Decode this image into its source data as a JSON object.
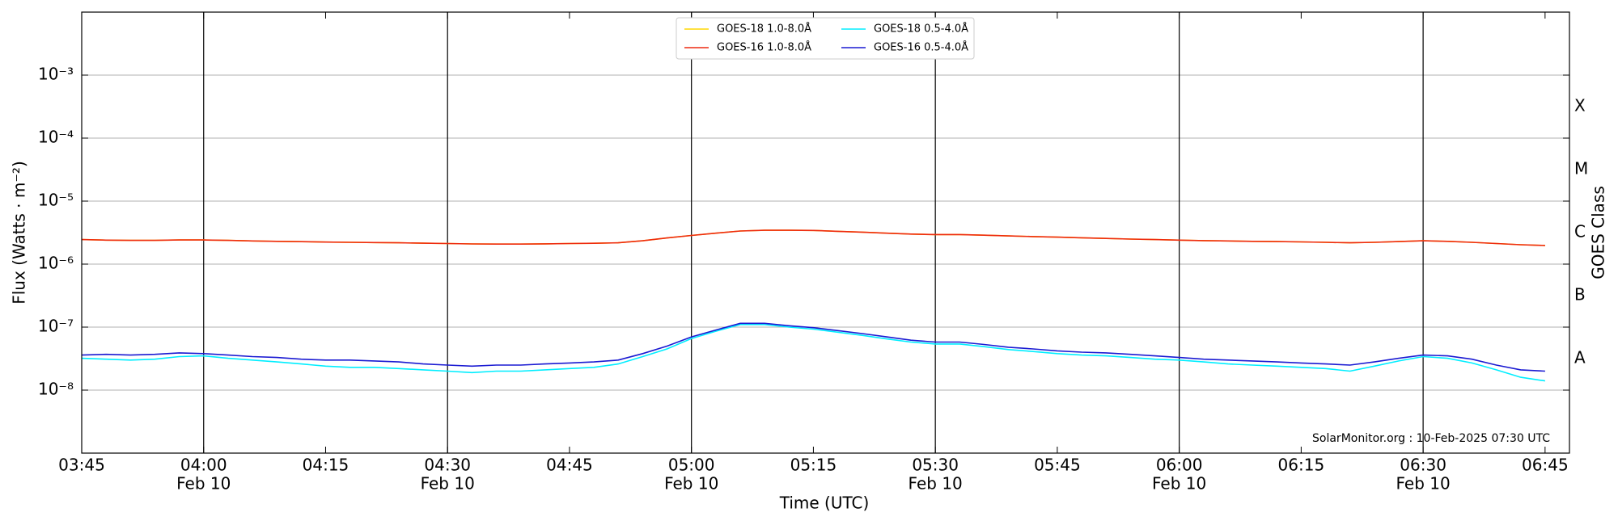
{
  "chart_data": {
    "type": "line",
    "x_label": "Time (UTC)",
    "y_label": "Flux (Watts · m⁻²)",
    "y2_label": "GOES Class",
    "class_labels": [
      "A",
      "B",
      "C",
      "M",
      "X"
    ],
    "annotation": "SolarMonitor.org : 10-Feb-2025 07:30 UTC",
    "yscale": "log",
    "grid": true,
    "legend": "top-center",
    "xlim": [
      "03:45",
      "06:48"
    ],
    "ylim": [
      1e-09,
      0.01
    ],
    "yticks": [
      {
        "value": 1e-08,
        "label": "10⁻⁸"
      },
      {
        "value": 1e-07,
        "label": "10⁻⁷"
      },
      {
        "value": 1e-06,
        "label": "10⁻⁶"
      },
      {
        "value": 1e-05,
        "label": "10⁻⁵"
      },
      {
        "value": 0.0001,
        "label": "10⁻⁴"
      },
      {
        "value": 0.001,
        "label": "10⁻³"
      }
    ],
    "xticks": [
      "03:45",
      {
        "value": "04:00",
        "label": [
          "04:00",
          "Feb 10"
        ]
      },
      "04:15",
      {
        "value": "04:30",
        "label": [
          "04:30",
          "Feb 10"
        ]
      },
      "04:45",
      {
        "value": "05:00",
        "label": [
          "05:00",
          "Feb 10"
        ]
      },
      "05:15",
      {
        "value": "05:30",
        "label": [
          "05:30",
          "Feb 10"
        ]
      },
      "05:45",
      {
        "value": "06:00",
        "label": [
          "06:00",
          "Feb 10"
        ]
      },
      "06:15",
      {
        "value": "06:30",
        "label": [
          "06:30",
          "Feb 10"
        ]
      },
      "06:45"
    ],
    "x": [
      "03:45",
      "03:48",
      "03:51",
      "03:54",
      "03:57",
      "04:00",
      "04:03",
      "04:06",
      "04:09",
      "04:12",
      "04:15",
      "04:18",
      "04:21",
      "04:24",
      "04:27",
      "04:30",
      "04:33",
      "04:36",
      "04:39",
      "04:42",
      "04:45",
      "04:48",
      "04:51",
      "04:54",
      "04:57",
      "05:00",
      "05:03",
      "05:06",
      "05:09",
      "05:12",
      "05:15",
      "05:18",
      "05:21",
      "05:24",
      "05:27",
      "05:30",
      "05:33",
      "05:36",
      "05:39",
      "05:42",
      "05:45",
      "05:48",
      "05:51",
      "05:54",
      "05:57",
      "06:00",
      "06:03",
      "06:06",
      "06:09",
      "06:12",
      "06:15",
      "06:18",
      "06:21",
      "06:24",
      "06:27",
      "06:30",
      "06:33",
      "06:36",
      "06:39",
      "06:42",
      "06:45"
    ],
    "series": [
      {
        "name": "GOES-18 1.0-8.0Å",
        "color": "#ffd700",
        "values": [
          2.45e-06,
          2.4e-06,
          2.38e-06,
          2.38e-06,
          2.42e-06,
          2.42e-06,
          2.38e-06,
          2.33e-06,
          2.3e-06,
          2.27e-06,
          2.24e-06,
          2.22e-06,
          2.2e-06,
          2.18e-06,
          2.15e-06,
          2.12e-06,
          2.09e-06,
          2.08e-06,
          2.08e-06,
          2.1e-06,
          2.12e-06,
          2.14e-06,
          2.18e-06,
          2.35e-06,
          2.6e-06,
          2.85e-06,
          3.1e-06,
          3.35e-06,
          3.45e-06,
          3.45e-06,
          3.42e-06,
          3.32e-06,
          3.22e-06,
          3.1e-06,
          3e-06,
          2.95e-06,
          2.95e-06,
          2.88e-06,
          2.8e-06,
          2.74e-06,
          2.68e-06,
          2.62e-06,
          2.56e-06,
          2.5e-06,
          2.45e-06,
          2.4e-06,
          2.36e-06,
          2.33e-06,
          2.3e-06,
          2.28e-06,
          2.25e-06,
          2.22e-06,
          2.18e-06,
          2.22e-06,
          2.28e-06,
          2.35e-06,
          2.3e-06,
          2.22e-06,
          2.12e-06,
          2.03e-06,
          1.98e-06
        ]
      },
      {
        "name": "GOES-16 1.0-8.0Å",
        "color": "#ee2a10",
        "values": [
          2.45e-06,
          2.4e-06,
          2.38e-06,
          2.38e-06,
          2.42e-06,
          2.42e-06,
          2.38e-06,
          2.33e-06,
          2.3e-06,
          2.27e-06,
          2.24e-06,
          2.22e-06,
          2.2e-06,
          2.18e-06,
          2.15e-06,
          2.12e-06,
          2.09e-06,
          2.08e-06,
          2.08e-06,
          2.1e-06,
          2.12e-06,
          2.14e-06,
          2.18e-06,
          2.35e-06,
          2.6e-06,
          2.85e-06,
          3.1e-06,
          3.35e-06,
          3.45e-06,
          3.45e-06,
          3.42e-06,
          3.32e-06,
          3.22e-06,
          3.1e-06,
          3e-06,
          2.95e-06,
          2.95e-06,
          2.88e-06,
          2.8e-06,
          2.74e-06,
          2.68e-06,
          2.62e-06,
          2.56e-06,
          2.5e-06,
          2.45e-06,
          2.4e-06,
          2.36e-06,
          2.33e-06,
          2.3e-06,
          2.28e-06,
          2.25e-06,
          2.22e-06,
          2.18e-06,
          2.22e-06,
          2.28e-06,
          2.35e-06,
          2.3e-06,
          2.22e-06,
          2.12e-06,
          2.03e-06,
          1.98e-06
        ]
      },
      {
        "name": "GOES-18 0.5-4.0Å",
        "color": "#00eeff",
        "values": [
          3.2e-08,
          3.1e-08,
          3e-08,
          3.1e-08,
          3.4e-08,
          3.5e-08,
          3.2e-08,
          3e-08,
          2.8e-08,
          2.6e-08,
          2.4e-08,
          2.3e-08,
          2.3e-08,
          2.2e-08,
          2.1e-08,
          2e-08,
          1.9e-08,
          2e-08,
          2e-08,
          2.1e-08,
          2.2e-08,
          2.3e-08,
          2.6e-08,
          3.4e-08,
          4.5e-08,
          6.6e-08,
          8.6e-08,
          1.1e-07,
          1.1e-07,
          1e-07,
          9.3e-08,
          8.3e-08,
          7.4e-08,
          6.5e-08,
          5.8e-08,
          5.4e-08,
          5.4e-08,
          4.9e-08,
          4.4e-08,
          4.1e-08,
          3.8e-08,
          3.6e-08,
          3.5e-08,
          3.3e-08,
          3.1e-08,
          3e-08,
          2.8e-08,
          2.6e-08,
          2.5e-08,
          2.4e-08,
          2.3e-08,
          2.2e-08,
          2e-08,
          2.4e-08,
          2.9e-08,
          3.4e-08,
          3.2e-08,
          2.7e-08,
          2.1e-08,
          1.6e-08,
          1.4e-08
        ]
      },
      {
        "name": "GOES-16 0.5-4.0Å",
        "color": "#1a1ad2",
        "values": [
          3.6e-08,
          3.7e-08,
          3.6e-08,
          3.7e-08,
          3.9e-08,
          3.8e-08,
          3.6e-08,
          3.4e-08,
          3.3e-08,
          3.1e-08,
          3e-08,
          3e-08,
          2.9e-08,
          2.8e-08,
          2.6e-08,
          2.5e-08,
          2.4e-08,
          2.5e-08,
          2.5e-08,
          2.6e-08,
          2.7e-08,
          2.8e-08,
          3e-08,
          3.8e-08,
          5e-08,
          7e-08,
          9e-08,
          1.15e-07,
          1.15e-07,
          1.05e-07,
          9.8e-08,
          8.8e-08,
          7.9e-08,
          7e-08,
          6.2e-08,
          5.8e-08,
          5.8e-08,
          5.3e-08,
          4.8e-08,
          4.5e-08,
          4.2e-08,
          4e-08,
          3.9e-08,
          3.7e-08,
          3.5e-08,
          3.3e-08,
          3.1e-08,
          3e-08,
          2.9e-08,
          2.8e-08,
          2.7e-08,
          2.6e-08,
          2.5e-08,
          2.8e-08,
          3.2e-08,
          3.6e-08,
          3.5e-08,
          3.1e-08,
          2.5e-08,
          2.1e-08,
          2e-08
        ]
      }
    ]
  }
}
